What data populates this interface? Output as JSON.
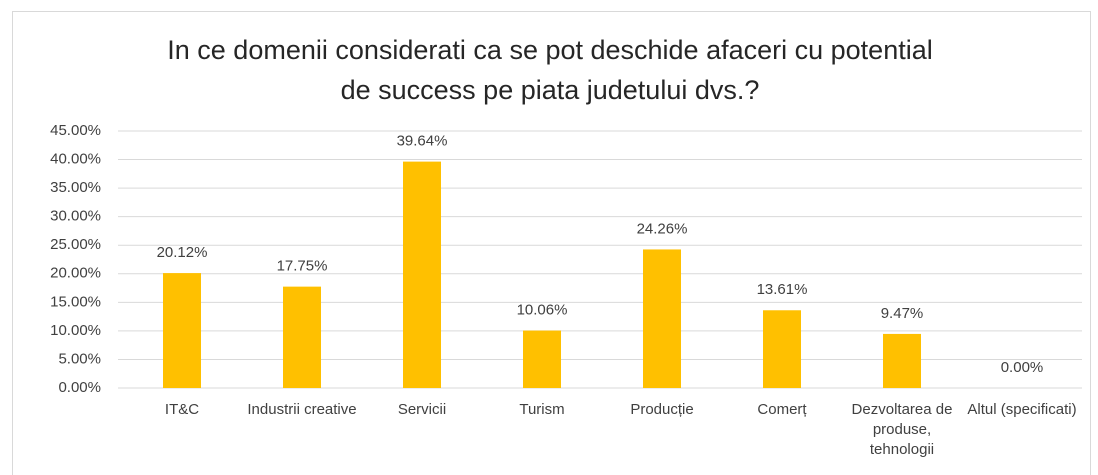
{
  "chart_data": {
    "type": "bar",
    "title": "In ce domenii considerati ca se pot deschide afaceri cu potential de success pe piata judetului dvs.?",
    "categories": [
      "IT&C",
      "Industrii creative",
      "Servicii",
      "Turism",
      "Producție",
      "Comerț",
      "Dezvoltarea de produse, tehnologii",
      "Altul (specificati)"
    ],
    "values": [
      20.12,
      17.75,
      39.64,
      10.06,
      24.26,
      13.61,
      9.47,
      0
    ],
    "value_labels": [
      "20.12%",
      "17.75%",
      "39.64%",
      "10.06%",
      "24.26%",
      "13.61%",
      "9.47%",
      "0.00%"
    ],
    "color": "#ffc000",
    "ylim": [
      0,
      45
    ],
    "yticks": [
      {
        "value": 0,
        "label": "0.00%"
      },
      {
        "value": 5,
        "label": "5.00%"
      },
      {
        "value": 10,
        "label": "10.00%"
      },
      {
        "value": 15,
        "label": "15.00%"
      },
      {
        "value": 20,
        "label": "20.00%"
      },
      {
        "value": 25,
        "label": "25.00%"
      },
      {
        "value": 30,
        "label": "30.00%"
      },
      {
        "value": 35,
        "label": "35.00%"
      },
      {
        "value": 40,
        "label": "40.00%"
      },
      {
        "value": 45,
        "label": "45.00%"
      }
    ],
    "grid": true
  }
}
